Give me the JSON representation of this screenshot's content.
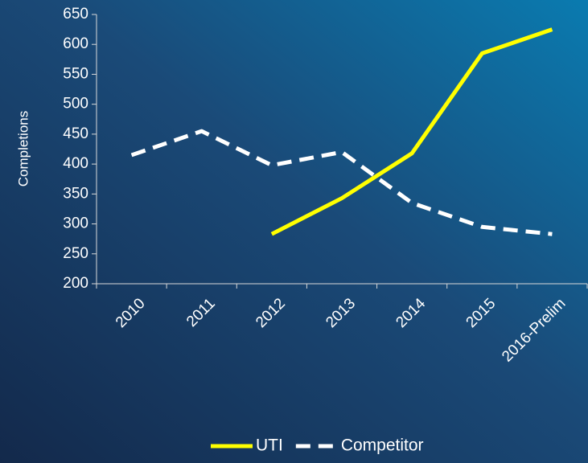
{
  "chart_data": {
    "type": "line",
    "y_label": "Completions",
    "categories": [
      "2010",
      "2011",
      "2012",
      "2013",
      "2014",
      "2015",
      "2016-Prelim"
    ],
    "series": [
      {
        "name": "UTI",
        "color": "#ffff00",
        "dash": "solid",
        "values": [
          null,
          null,
          283,
          343,
          418,
          585,
          625
        ]
      },
      {
        "name": "Competitor",
        "color": "#ffffff",
        "dash": "dashed",
        "values": [
          415,
          455,
          398,
          420,
          335,
          295,
          283
        ]
      }
    ],
    "ylim": [
      200,
      650
    ],
    "yticks": [
      200,
      250,
      300,
      350,
      400,
      450,
      500,
      550,
      600,
      650
    ],
    "grid": false,
    "legend": "bottom"
  }
}
